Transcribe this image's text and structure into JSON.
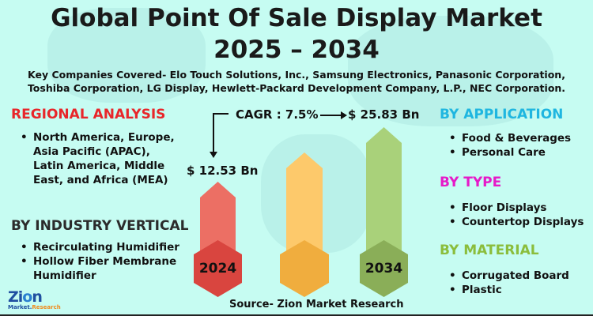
{
  "title_line1": "Global Point Of Sale Display Market",
  "title_line2": "2025 – 2034",
  "companies": "Key Companies Covered- Elo Touch Solutions, Inc., Samsung Electronics, Panasonic Corporation, Toshiba Corporation, LG Display, Hewlett-Packard Development Company, L.P., NEC Corporation.",
  "regional": {
    "heading": "REGIONAL ANALYSIS",
    "items": [
      "North America, Europe, Asia Pacific (APAC), Latin America, Middle East, and Africa (MEA)"
    ]
  },
  "industry": {
    "heading": "BY INDUSTRY VERTICAL",
    "items": [
      "Recirculating Humidifier",
      "Hollow Fiber Membrane Humidifier"
    ]
  },
  "application": {
    "heading": "BY APPLICATION",
    "items": [
      "Food & Beverages",
      "Personal Care"
    ]
  },
  "type": {
    "heading": "BY TYPE",
    "items": [
      "Floor Displays",
      "Countertop Displays"
    ]
  },
  "material": {
    "heading": "BY MATERIAL",
    "items": [
      "Corrugated Board",
      "Plastic"
    ]
  },
  "cagr": "CAGR : 7.5%",
  "value_2034": "$ 25.83 Bn",
  "value_2024": "$ 12.53 Bn",
  "year_start": "2024",
  "year_end": "2034",
  "source": "Source- Zion Market Research",
  "logo": "Zion Market.Research",
  "colors": {
    "regional": "#e8262a",
    "industry": "#2b2b2b",
    "application": "#1fb6e0",
    "type": "#e619c8",
    "material": "#8bbd3c",
    "bar1": "#ec6f64",
    "hex1": "#d9453f",
    "bar2": "#fdc96b",
    "hex2": "#f0ad3e",
    "bar3": "#a9d17a",
    "hex3": "#8aae58"
  }
}
